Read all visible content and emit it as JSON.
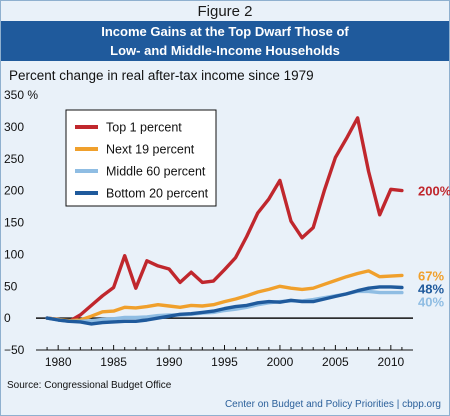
{
  "figure_label": "Figure 2",
  "title_line1": "Income Gains at the Top Dwarf Those of",
  "title_line2": "Low- and Middle-Income Households",
  "subtitle": "Percent change in real after-tax income since 1979",
  "source": "Source: Congressional Budget Office",
  "credit": "Center on Budget and Policy Priorities | cbpp.org",
  "colors": {
    "title_bg": "#1f5a9c",
    "background": "#e9f1f9"
  },
  "chart_data": {
    "type": "line",
    "xlim": [
      1978,
      2012
    ],
    "ylim": [
      -50,
      350
    ],
    "x_ticks": [
      1980,
      1985,
      1990,
      1995,
      2000,
      2005,
      2010
    ],
    "y_ticks": [
      {
        "value": 350,
        "label": "350 %"
      },
      {
        "value": 300,
        "label": "300"
      },
      {
        "value": 250,
        "label": "250"
      },
      {
        "value": 200,
        "label": "200"
      },
      {
        "value": 150,
        "label": "150"
      },
      {
        "value": 100,
        "label": "100"
      },
      {
        "value": 50,
        "label": "50"
      },
      {
        "value": 0,
        "label": "0"
      },
      {
        "value": -50,
        "label": "−50"
      }
    ],
    "legend_position": "top-left",
    "series": [
      {
        "name": "Top 1 percent",
        "color": "#c0272d",
        "end_label": "200%",
        "values": [
          [
            1979,
            0
          ],
          [
            1980,
            -2
          ],
          [
            1981,
            -5
          ],
          [
            1982,
            5
          ],
          [
            1983,
            20
          ],
          [
            1984,
            35
          ],
          [
            1985,
            48
          ],
          [
            1986,
            98
          ],
          [
            1987,
            47
          ],
          [
            1988,
            90
          ],
          [
            1989,
            82
          ],
          [
            1990,
            77
          ],
          [
            1991,
            56
          ],
          [
            1992,
            72
          ],
          [
            1993,
            56
          ],
          [
            1994,
            58
          ],
          [
            1995,
            76
          ],
          [
            1996,
            95
          ],
          [
            1997,
            128
          ],
          [
            1998,
            165
          ],
          [
            1999,
            187
          ],
          [
            2000,
            216
          ],
          [
            2001,
            152
          ],
          [
            2002,
            126
          ],
          [
            2003,
            142
          ],
          [
            2004,
            200
          ],
          [
            2005,
            252
          ],
          [
            2006,
            282
          ],
          [
            2007,
            314
          ],
          [
            2008,
            230
          ],
          [
            2009,
            162
          ],
          [
            2010,
            202
          ],
          [
            2011,
            200
          ]
        ]
      },
      {
        "name": "Next 19 percent",
        "color": "#f0a02c",
        "end_label": "67%",
        "values": [
          [
            1979,
            0
          ],
          [
            1980,
            -2
          ],
          [
            1981,
            -4
          ],
          [
            1982,
            -3
          ],
          [
            1983,
            3
          ],
          [
            1984,
            10
          ],
          [
            1985,
            11
          ],
          [
            1986,
            17
          ],
          [
            1987,
            16
          ],
          [
            1988,
            18
          ],
          [
            1989,
            21
          ],
          [
            1990,
            19
          ],
          [
            1991,
            17
          ],
          [
            1992,
            20
          ],
          [
            1993,
            19
          ],
          [
            1994,
            21
          ],
          [
            1995,
            26
          ],
          [
            1996,
            30
          ],
          [
            1997,
            35
          ],
          [
            1998,
            41
          ],
          [
            1999,
            45
          ],
          [
            2000,
            50
          ],
          [
            2001,
            47
          ],
          [
            2002,
            45
          ],
          [
            2003,
            47
          ],
          [
            2004,
            53
          ],
          [
            2005,
            59
          ],
          [
            2006,
            65
          ],
          [
            2007,
            70
          ],
          [
            2008,
            74
          ],
          [
            2009,
            65
          ],
          [
            2010,
            66
          ],
          [
            2011,
            67
          ]
        ]
      },
      {
        "name": "Middle 60 percent",
        "color": "#8fbde3",
        "end_label": "40%",
        "values": [
          [
            1979,
            0
          ],
          [
            1980,
            -3
          ],
          [
            1981,
            -5
          ],
          [
            1982,
            -5
          ],
          [
            1983,
            -4
          ],
          [
            1984,
            -2
          ],
          [
            1985,
            -1
          ],
          [
            1986,
            1
          ],
          [
            1987,
            1
          ],
          [
            1988,
            2
          ],
          [
            1989,
            4
          ],
          [
            1990,
            5
          ],
          [
            1991,
            5
          ],
          [
            1992,
            6
          ],
          [
            1993,
            8
          ],
          [
            1994,
            9
          ],
          [
            1995,
            12
          ],
          [
            1996,
            14
          ],
          [
            1997,
            17
          ],
          [
            1998,
            21
          ],
          [
            1999,
            24
          ],
          [
            2000,
            26
          ],
          [
            2001,
            27
          ],
          [
            2002,
            27
          ],
          [
            2003,
            29
          ],
          [
            2004,
            32
          ],
          [
            2005,
            35
          ],
          [
            2006,
            38
          ],
          [
            2007,
            42
          ],
          [
            2008,
            42
          ],
          [
            2009,
            40
          ],
          [
            2010,
            40
          ],
          [
            2011,
            40
          ]
        ]
      },
      {
        "name": "Bottom 20 percent",
        "color": "#1f5a9c",
        "end_label": "48%",
        "values": [
          [
            1979,
            0
          ],
          [
            1980,
            -3
          ],
          [
            1981,
            -5
          ],
          [
            1982,
            -6
          ],
          [
            1983,
            -9
          ],
          [
            1984,
            -7
          ],
          [
            1985,
            -6
          ],
          [
            1986,
            -5
          ],
          [
            1987,
            -5
          ],
          [
            1988,
            -3
          ],
          [
            1989,
            0
          ],
          [
            1990,
            3
          ],
          [
            1991,
            6
          ],
          [
            1992,
            7
          ],
          [
            1993,
            9
          ],
          [
            1994,
            11
          ],
          [
            1995,
            15
          ],
          [
            1996,
            18
          ],
          [
            1997,
            20
          ],
          [
            1998,
            24
          ],
          [
            1999,
            26
          ],
          [
            2000,
            25
          ],
          [
            2001,
            28
          ],
          [
            2002,
            26
          ],
          [
            2003,
            26
          ],
          [
            2004,
            30
          ],
          [
            2005,
            34
          ],
          [
            2006,
            38
          ],
          [
            2007,
            43
          ],
          [
            2008,
            47
          ],
          [
            2009,
            49
          ],
          [
            2010,
            49
          ],
          [
            2011,
            48
          ]
        ]
      }
    ]
  }
}
